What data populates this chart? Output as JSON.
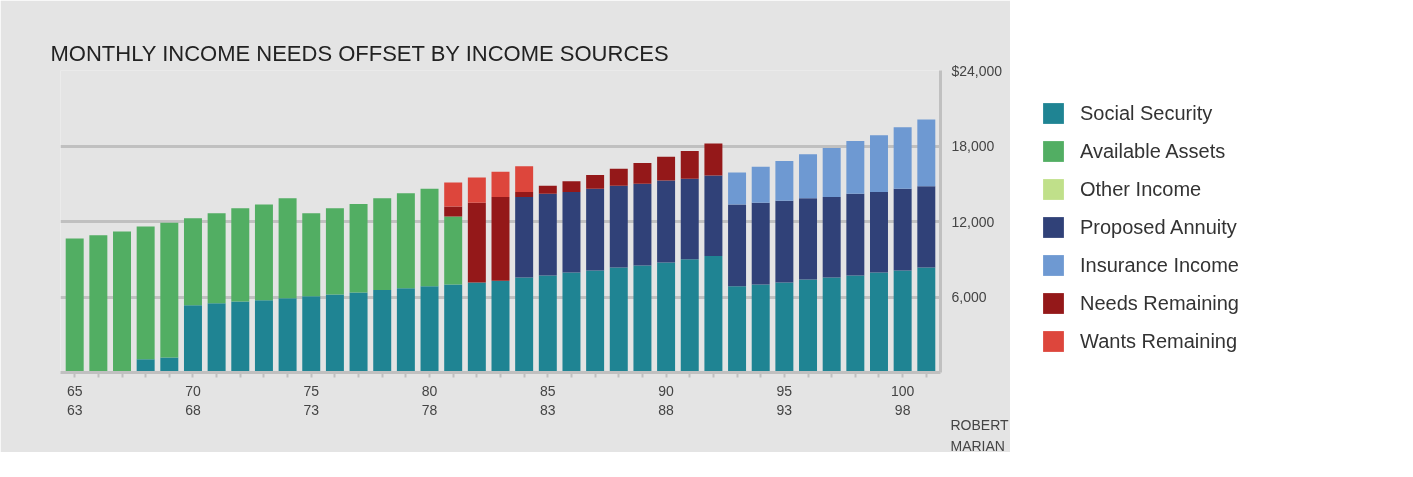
{
  "chart_data": {
    "type": "bar",
    "stacked": true,
    "title": "MONTHLY INCOME NEEDS OFFSET BY INCOME SOURCES",
    "xlabel": "ROBERT\nMARIAN",
    "categories": [
      "65\n63",
      null,
      null,
      null,
      null,
      "70\n68",
      null,
      null,
      null,
      null,
      "75\n73",
      null,
      null,
      null,
      null,
      "80\n78",
      null,
      null,
      null,
      null,
      "85\n83",
      null,
      null,
      null,
      null,
      "90\n88",
      null,
      null,
      null,
      null,
      "95\n93",
      null,
      null,
      null,
      null,
      "100\n98",
      null
    ],
    "series": [
      {
        "name": "Social Security",
        "color": "#1f8493",
        "values": [
          null,
          null,
          null,
          1050,
          1200,
          5350,
          5500,
          5650,
          5750,
          5900,
          6050,
          6200,
          6350,
          6550,
          6700,
          6850,
          7000,
          7150,
          7300,
          7550,
          7700,
          7950,
          8100,
          8350,
          8500,
          8750,
          9000,
          9250,
          6850,
          7000,
          7150,
          7400,
          7550,
          7700,
          7950,
          8100,
          8350
        ]
      },
      {
        "name": "Available Assets",
        "color": "#52ae63",
        "values": [
          10650,
          10900,
          11200,
          10550,
          10700,
          6900,
          7150,
          7400,
          7600,
          7950,
          6600,
          6850,
          7050,
          7300,
          7550,
          7750,
          5400,
          null,
          null,
          null,
          null,
          null,
          null,
          null,
          null,
          null,
          null,
          null,
          null,
          null,
          null,
          null,
          null,
          null,
          null,
          null,
          null
        ]
      },
      {
        "name": "Other Income",
        "color": "#c0e08a",
        "values": [
          null,
          null,
          null,
          null,
          null,
          null,
          null,
          null,
          null,
          null,
          null,
          null,
          null,
          null,
          null,
          null,
          null,
          null,
          null,
          null,
          null,
          null,
          null,
          null,
          null,
          null,
          null,
          null,
          null,
          null,
          null,
          null,
          null,
          null,
          null,
          null,
          null
        ]
      },
      {
        "name": "Proposed Annuity",
        "color": "#304178",
        "values": [
          null,
          null,
          null,
          null,
          null,
          null,
          null,
          null,
          null,
          null,
          null,
          null,
          null,
          null,
          null,
          null,
          null,
          null,
          null,
          6400,
          6500,
          6400,
          6500,
          6500,
          6500,
          6500,
          6400,
          6400,
          6500,
          6500,
          6500,
          6450,
          6400,
          6500,
          6400,
          6500,
          6450
        ]
      },
      {
        "name": "Insurance Income",
        "color": "#6e99d2",
        "values": [
          null,
          null,
          null,
          null,
          null,
          null,
          null,
          null,
          null,
          null,
          null,
          null,
          null,
          null,
          null,
          null,
          null,
          null,
          null,
          null,
          null,
          null,
          null,
          null,
          null,
          null,
          null,
          null,
          2550,
          2850,
          3150,
          3500,
          3900,
          4200,
          4500,
          4900,
          5300
        ]
      },
      {
        "name": "Needs Remaining",
        "color": "#941819",
        "values": [
          null,
          null,
          null,
          null,
          null,
          null,
          null,
          null,
          null,
          null,
          null,
          null,
          null,
          null,
          null,
          null,
          800,
          6350,
          6650,
          400,
          650,
          850,
          1100,
          1350,
          1650,
          1900,
          2200,
          2550,
          null,
          null,
          null,
          null,
          null,
          null,
          null,
          null,
          null
        ]
      },
      {
        "name": "Wants Remaining",
        "color": "#dd463c",
        "values": [
          null,
          null,
          null,
          null,
          null,
          null,
          null,
          null,
          null,
          null,
          null,
          null,
          null,
          null,
          null,
          null,
          1900,
          2000,
          2000,
          2050,
          null,
          null,
          null,
          null,
          null,
          null,
          null,
          null,
          null,
          null,
          null,
          null,
          null,
          null,
          null,
          null,
          null
        ]
      }
    ],
    "ylim": [
      0,
      24000
    ],
    "yticks": [
      {
        "value": 0,
        "label": null
      },
      {
        "value": 6000,
        "label": "6,000"
      },
      {
        "value": 12000,
        "label": "12,000"
      },
      {
        "value": 18000,
        "label": "18,000"
      },
      {
        "value": 24000,
        "label": "$24,000"
      }
    ],
    "grid": "y",
    "legend": "right"
  }
}
